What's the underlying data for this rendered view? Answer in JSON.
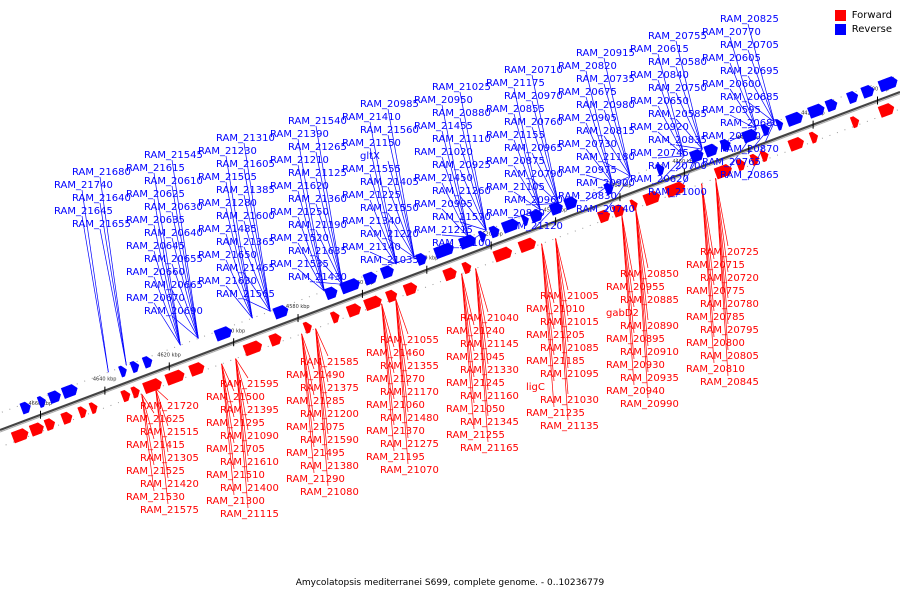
{
  "legend": [
    {
      "label": "Forward",
      "color": "#ff0000"
    },
    {
      "label": "Reverse",
      "color": "#0000ff"
    }
  ],
  "caption": "Amycolatopsis mediterranei S699, complete genome. - 0..10236779",
  "axis": {
    "start_kbp": 4660,
    "end_kbp": 4400,
    "step_kbp": 20,
    "unit": "kbp"
  },
  "reverse_labels": [
    "RAM_20825",
    "RAM_20770",
    "RAM_20705",
    "RAM_20605",
    "RAM_20695",
    "RAM_20600",
    "RAM_20685",
    "RAM_20595",
    "RAM_20680",
    "RAM_20590",
    "RAM_20870",
    "RAM_20765",
    "RAM_20865",
    "RAM_20755",
    "RAM_20615",
    "RAM_20580",
    "RAM_20840",
    "RAM_20750",
    "RAM_20650",
    "RAM_20585",
    "RAM_20920",
    "RAM_20835",
    "RAM_20745",
    "RAM_20700",
    "RAM_20620",
    "RAM_21000",
    "RAM_20915",
    "RAM_20820",
    "RAM_20735",
    "RAM_20675",
    "RAM_20980",
    "RAM_20905",
    "RAM_20815",
    "RAM_20730",
    "RAM_21180",
    "RAM_20975",
    "RAM_20900",
    "RAM_20830",
    "RAM_20740",
    "RAM_20710",
    "RAM_21175",
    "RAM_20970",
    "RAM_20855",
    "RAM_20760",
    "RAM_21155",
    "RAM_20965",
    "RAM_20875",
    "RAM_20790",
    "RAM_21105",
    "RAM_20960",
    "RAM_20860",
    "RAM_21120",
    "RAM_21025",
    "RAM_20950",
    "RAM_20880",
    "RAM_21455",
    "RAM_21110",
    "RAM_21020",
    "RAM_20925",
    "RAM_21450",
    "RAM_21260",
    "RAM_20995",
    "RAM_21570",
    "RAM_21215",
    "RAM_21100",
    "RAM_20985",
    "RAM_21410",
    "RAM_21560",
    "RAM_21150",
    "gltX",
    "RAM_21555",
    "RAM_21405",
    "RAM_21225",
    "RAM_21550",
    "RAM_21340",
    "RAM_21220",
    "RAM_21140",
    "RAM_21035",
    "RAM_21540",
    "RAM_21390",
    "RAM_21265",
    "RAM_21210",
    "RAM_21125",
    "RAM_21620",
    "RAM_21360",
    "RAM_21250",
    "RAM_21190",
    "RAM_21520",
    "RAM_21635",
    "RAM_21535",
    "RAM_21430",
    "RAM_21310",
    "RAM_21230",
    "RAM_21605",
    "RAM_21505",
    "RAM_21385",
    "RAM_21280",
    "RAM_21600",
    "RAM_21485",
    "RAM_21365",
    "RAM_21650",
    "RAM_21465",
    "RAM_21630",
    "RAM_21565",
    "RAM_21545",
    "RAM_21615",
    "RAM_20610",
    "RAM_20625",
    "RAM_20630",
    "RAM_20635",
    "RAM_20640",
    "RAM_20645",
    "RAM_20655",
    "RAM_20660",
    "RAM_20665",
    "RAM_20670",
    "RAM_20690",
    "RAM_21680",
    "RAM_21740",
    "RAM_21640",
    "RAM_21645",
    "RAM_21655"
  ],
  "forward_labels": [
    "RAM_20725",
    "RAM_20715",
    "RAM_20720",
    "RAM_20775",
    "RAM_20780",
    "RAM_20785",
    "RAM_20795",
    "RAM_20800",
    "RAM_20805",
    "RAM_20810",
    "RAM_20845",
    "RAM_20850",
    "RAM_20955",
    "RAM_20885",
    "gabD2",
    "RAM_20890",
    "RAM_20895",
    "RAM_20910",
    "RAM_20930",
    "RAM_20935",
    "RAM_20940",
    "RAM_20990",
    "RAM_21005",
    "RAM_21010",
    "RAM_21015",
    "RAM_21205",
    "RAM_21085",
    "RAM_21185",
    "RAM_21095",
    "ligC",
    "RAM_21030",
    "RAM_21235",
    "RAM_21135",
    "RAM_21040",
    "RAM_21240",
    "RAM_21145",
    "RAM_21045",
    "RAM_21330",
    "RAM_21245",
    "RAM_21160",
    "RAM_21050",
    "RAM_21345",
    "RAM_21255",
    "RAM_21165",
    "RAM_21055",
    "RAM_21460",
    "RAM_21355",
    "RAM_21270",
    "RAM_21170",
    "RAM_21060",
    "RAM_21480",
    "RAM_21370",
    "RAM_21275",
    "RAM_21195",
    "RAM_21070",
    "RAM_21585",
    "RAM_21490",
    "RAM_21375",
    "RAM_21285",
    "RAM_21200",
    "RAM_21075",
    "RAM_21590",
    "RAM_21495",
    "RAM_21380",
    "RAM_21290",
    "RAM_21080",
    "RAM_21595",
    "RAM_21500",
    "RAM_21395",
    "RAM_21295",
    "RAM_21090",
    "RAM_21705",
    "RAM_21610",
    "RAM_21510",
    "RAM_21400",
    "RAM_21300",
    "RAM_21115",
    "RAM_21720",
    "RAM_21625",
    "RAM_21515",
    "RAM_21415",
    "RAM_21305",
    "RAM_21525",
    "RAM_21420",
    "RAM_21530",
    "RAM_21575"
  ]
}
